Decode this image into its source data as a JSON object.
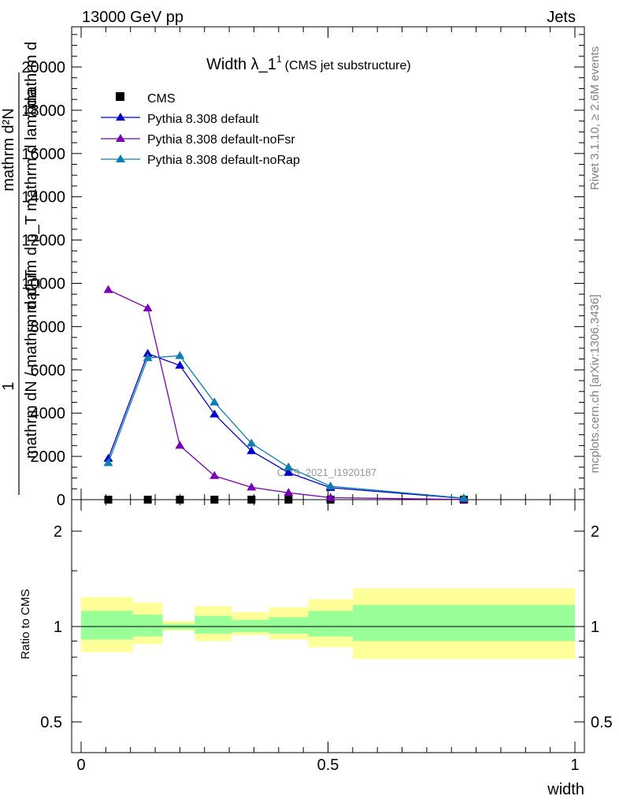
{
  "header": {
    "left": "13000 GeV pp",
    "right": "Jets"
  },
  "side": {
    "rivet": "Rivet 3.1.10, ≥ 2.6M events",
    "mcplots": "mcplots.cern.ch [arXiv:1306.3436]"
  },
  "title": {
    "main": "Width λ_1",
    "sup": "1",
    "sub": "(CMS jet substructure)"
  },
  "watermark": "CMS_2021_I1920187",
  "chart_data": {
    "type": "line",
    "xlabel": "width",
    "xlim": [
      0,
      1
    ],
    "main": {
      "ylabel_top": "mathrm d",
      "ylabel_num": "mathrm d²N",
      "ylabel_den": "mathrm d p_T mathrm d lambda",
      "ylabel_one": "1",
      "ylabel_norm": "mathrm dN / mathrm d p_T",
      "ylim": [
        0,
        22000
      ],
      "ytick_values": [
        0,
        2000,
        4000,
        6000,
        8000,
        10000,
        12000,
        14000,
        16000,
        18000,
        20000
      ],
      "ytick_labels": [
        "0",
        "2000",
        "4000",
        "6000",
        "8000",
        "10000",
        "12000",
        "14000",
        "16000",
        "18000",
        "20000"
      ]
    },
    "ratio": {
      "ylabel": "Ratio to CMS",
      "ytick_values": [
        0.5,
        1,
        2
      ],
      "ytick_labels": [
        "0.5",
        "1",
        "2"
      ],
      "bins": [
        {
          "lo": 0.0,
          "hi": 0.105,
          "inner": [
            0.91,
            1.12
          ],
          "outer": [
            0.83,
            1.24
          ]
        },
        {
          "lo": 0.105,
          "hi": 0.165,
          "inner": [
            0.93,
            1.09
          ],
          "outer": [
            0.88,
            1.19
          ]
        },
        {
          "lo": 0.165,
          "hi": 0.23,
          "inner": [
            0.98,
            1.02
          ],
          "outer": [
            0.97,
            1.04
          ]
        },
        {
          "lo": 0.23,
          "hi": 0.305,
          "inner": [
            0.95,
            1.08
          ],
          "outer": [
            0.9,
            1.16
          ]
        },
        {
          "lo": 0.305,
          "hi": 0.38,
          "inner": [
            0.96,
            1.05
          ],
          "outer": [
            0.94,
            1.11
          ]
        },
        {
          "lo": 0.38,
          "hi": 0.46,
          "inner": [
            0.95,
            1.07
          ],
          "outer": [
            0.91,
            1.15
          ]
        },
        {
          "lo": 0.46,
          "hi": 0.55,
          "inner": [
            0.93,
            1.12
          ],
          "outer": [
            0.86,
            1.22
          ]
        },
        {
          "lo": 0.55,
          "hi": 1.0,
          "inner": [
            0.9,
            1.17
          ],
          "outer": [
            0.79,
            1.32
          ]
        }
      ]
    },
    "x": [
      0.055,
      0.135,
      0.2,
      0.27,
      0.345,
      0.42,
      0.505,
      0.775
    ],
    "series": [
      {
        "name": "CMS",
        "color": "#000000",
        "marker": "square",
        "values": [
          0,
          0,
          0,
          0,
          0,
          0,
          0,
          0
        ]
      },
      {
        "name": "Pythia 8.308 default",
        "color": "#0000cc",
        "marker": "triangle",
        "values": [
          1900,
          6750,
          6200,
          3950,
          2250,
          1250,
          550,
          60
        ]
      },
      {
        "name": "Pythia 8.308 default-noFsr",
        "color": "#7a00b5",
        "marker": "triangle",
        "values": [
          9700,
          8850,
          2500,
          1100,
          570,
          320,
          90,
          10
        ]
      },
      {
        "name": "Pythia 8.308 default-noRap",
        "color": "#0b7faf",
        "marker": "triangle",
        "values": [
          1700,
          6550,
          6650,
          4500,
          2600,
          1500,
          620,
          70
        ]
      }
    ],
    "band_colors": {
      "inner": "#99ff99",
      "outer": "#ffff99"
    }
  }
}
